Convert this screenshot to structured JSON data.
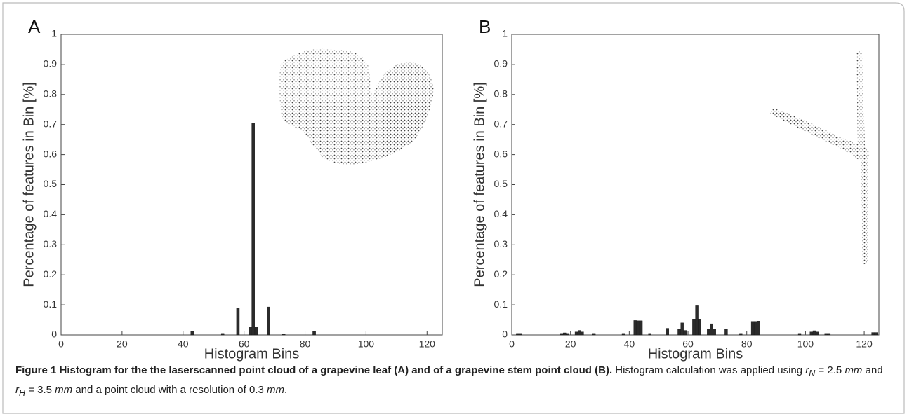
{
  "chart_data": [
    {
      "type": "bar",
      "panel_label": "A",
      "xlabel": "Histogram Bins",
      "ylabel": "Percentage of features in Bin [%]",
      "x": [
        43,
        53,
        58,
        62,
        63,
        64,
        68,
        73,
        83
      ],
      "values": [
        0.012,
        0.005,
        0.09,
        0.025,
        0.705,
        0.025,
        0.093,
        0.004,
        0.012
      ],
      "color": "#2b2b2b",
      "xlim": [
        0,
        125
      ],
      "xticks": [
        0,
        20,
        40,
        60,
        80,
        100,
        120
      ],
      "ylim": [
        0,
        1
      ],
      "yticks": [
        0,
        0.1,
        0.2,
        0.3,
        0.4,
        0.5,
        0.6,
        0.7,
        0.8,
        0.9,
        1
      ]
    },
    {
      "type": "bar",
      "panel_label": "B",
      "xlabel": "Histogram Bins",
      "ylabel": "Percentage of features in Bin [%]",
      "x": [
        2,
        3,
        17,
        18,
        19,
        22,
        23,
        24,
        28,
        38,
        42,
        43,
        44,
        47,
        53,
        57,
        58,
        59,
        62,
        63,
        64,
        67,
        68,
        69,
        73,
        78,
        82,
        83,
        84,
        98,
        102,
        103,
        104,
        107,
        108,
        123,
        124
      ],
      "values": [
        0.005,
        0.005,
        0.005,
        0.007,
        0.005,
        0.01,
        0.015,
        0.01,
        0.005,
        0.005,
        0.048,
        0.047,
        0.047,
        0.005,
        0.022,
        0.02,
        0.04,
        0.015,
        0.053,
        0.097,
        0.053,
        0.02,
        0.037,
        0.018,
        0.02,
        0.005,
        0.045,
        0.045,
        0.046,
        0.005,
        0.01,
        0.014,
        0.01,
        0.005,
        0.005,
        0.008,
        0.008
      ],
      "color": "#2b2b2b",
      "xlim": [
        0,
        125
      ],
      "xticks": [
        0,
        20,
        40,
        60,
        80,
        100,
        120
      ],
      "ylim": [
        0,
        1
      ],
      "yticks": [
        0,
        0.1,
        0.2,
        0.3,
        0.4,
        0.5,
        0.6,
        0.7,
        0.8,
        0.9,
        1
      ]
    }
  ],
  "caption": {
    "title": "Figure 1 Histogram for the the laserscanned point cloud of a grapevine leaf (A) and of a grapevine stem point cloud (B).",
    "parts": [
      " Histogram calculation was applied using ",
      "r",
      "N",
      " = 2.5 ",
      "mm",
      " and ",
      "r",
      "H",
      " = 3.5 ",
      "mm",
      " and a point cloud with a resolution of 0.3 ",
      "mm",
      "."
    ]
  }
}
